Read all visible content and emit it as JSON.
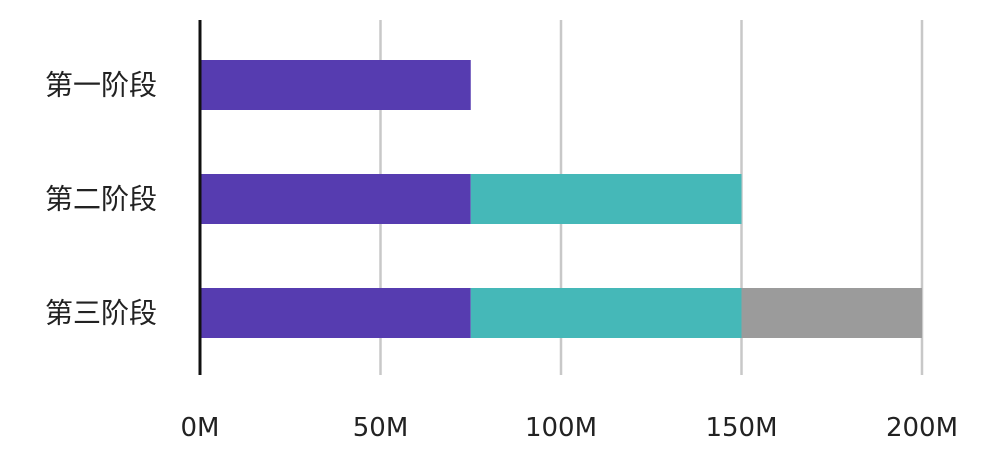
{
  "chart_data": {
    "type": "bar",
    "orientation": "horizontal",
    "stacked": true,
    "categories": [
      "第一阶段",
      "第二阶段",
      "第三阶段"
    ],
    "series": [
      {
        "color": "#563CB0",
        "values": [
          75,
          75,
          75
        ]
      },
      {
        "color": "#45B8B8",
        "values": [
          0,
          75,
          75
        ]
      },
      {
        "color": "#9B9B9B",
        "values": [
          0,
          0,
          50
        ]
      }
    ],
    "xlim": [
      0,
      200
    ],
    "xticks": [
      0,
      50,
      100,
      150,
      200
    ],
    "xtick_labels": [
      "0M",
      "50M",
      "100M",
      "150M",
      "200M"
    ],
    "title": "",
    "xlabel": "",
    "ylabel": "",
    "grid": "vertical",
    "legend": "none"
  }
}
